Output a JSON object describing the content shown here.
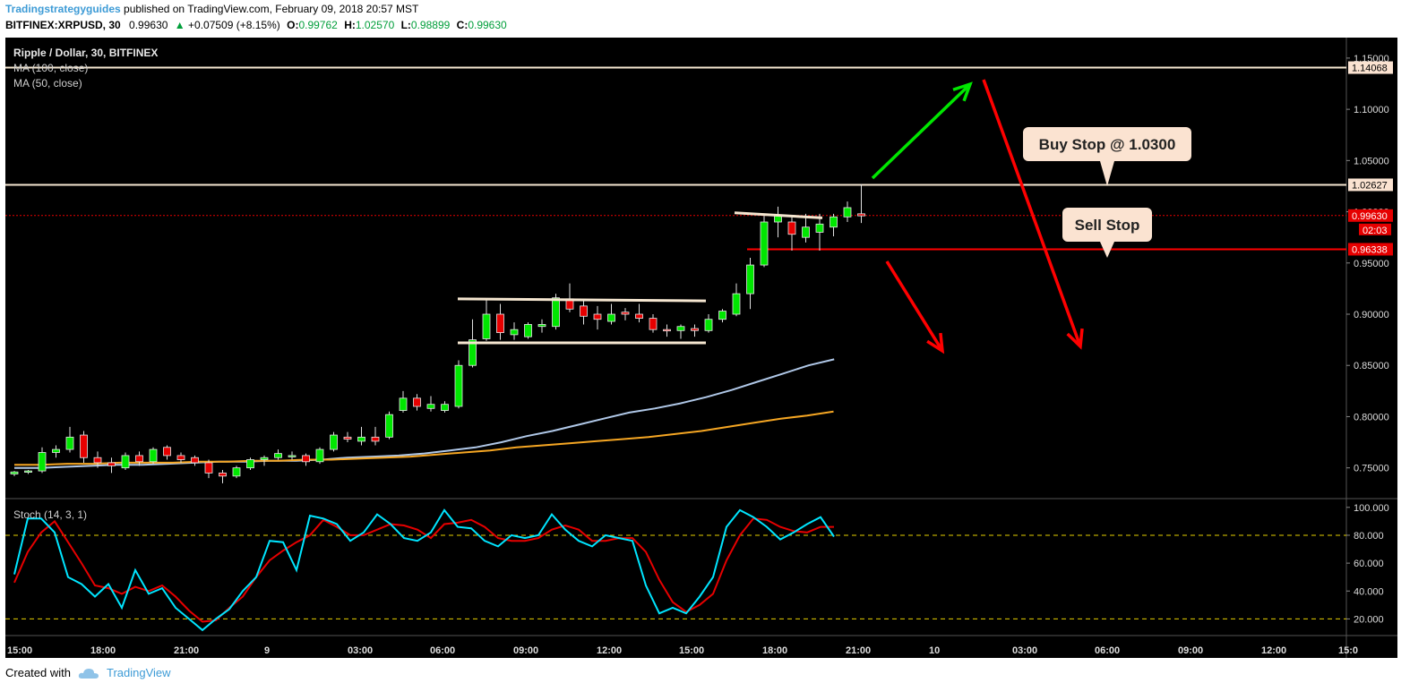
{
  "header": {
    "author": "Tradingstrategyguides",
    "published": " published on TradingView.com, February 09, 2018 20:57 MST",
    "symbol": "BITFINEX:XRPUSD, 30",
    "last": "0.99630",
    "change": "+0.07509 (+8.15%)",
    "o_label": "O:",
    "o": "0.99762",
    "h_label": "H:",
    "h": "1.02570",
    "l_label": "L:",
    "l": "0.98899",
    "c_label": "C:",
    "c": "0.99630"
  },
  "legend": {
    "title": "Ripple / Dollar, 30, BITFINEX",
    "ma100": "MA (100, close)",
    "ma50": "MA (50, close)",
    "stoch": "Stoch (14, 3, 1)"
  },
  "annotations": {
    "buy_stop": "Buy Stop @ 1.0300",
    "sell_stop": "Sell Stop"
  },
  "footer": {
    "created": "Created with",
    "brand": "TradingView"
  },
  "colors": {
    "up": "#00e600",
    "down": "#e60000",
    "ma100": "#b0c8e8",
    "ma50": "#f5a623",
    "stoch_k": "#00e5ff",
    "stoch_d": "#e60000",
    "level_line": "#f5e6d0",
    "sell_line": "#ff0000",
    "arrow_up": "#00e600",
    "arrow_down": "#ff0000"
  },
  "chart_data": {
    "type": "candlestick",
    "price_axis": {
      "ticks": [
        "1.15000",
        "1.10000",
        "1.05000",
        "1.00000",
        "0.95000",
        "0.90000",
        "0.85000",
        "0.80000",
        "0.75000"
      ],
      "ylim": [
        0.72,
        1.17
      ]
    },
    "time_axis": [
      "15:00",
      "18:00",
      "21:00",
      "9",
      "03:00",
      "06:00",
      "09:00",
      "12:00",
      "15:00",
      "18:00",
      "21:00",
      "10",
      "03:00",
      "06:00",
      "09:00",
      "12:00",
      "15:0"
    ],
    "price_labels": {
      "resistance": "1.14068",
      "breakout": "1.02627",
      "last": "0.99630",
      "countdown": "02:03",
      "sell_level": "0.96338"
    },
    "levels": {
      "resistance": 1.1407,
      "breakout": 1.0263,
      "last": 0.9963,
      "sell": 0.9634
    },
    "candles": [
      [
        0.744,
        0.747,
        0.742,
        0.746
      ],
      [
        0.746,
        0.748,
        0.744,
        0.747
      ],
      [
        0.747,
        0.77,
        0.745,
        0.765
      ],
      [
        0.765,
        0.772,
        0.76,
        0.768
      ],
      [
        0.768,
        0.79,
        0.765,
        0.78
      ],
      [
        0.782,
        0.786,
        0.755,
        0.76
      ],
      [
        0.76,
        0.766,
        0.75,
        0.755
      ],
      [
        0.755,
        0.76,
        0.745,
        0.752
      ],
      [
        0.75,
        0.765,
        0.748,
        0.762
      ],
      [
        0.762,
        0.766,
        0.752,
        0.756
      ],
      [
        0.756,
        0.77,
        0.754,
        0.768
      ],
      [
        0.77,
        0.772,
        0.758,
        0.762
      ],
      [
        0.762,
        0.765,
        0.755,
        0.758
      ],
      [
        0.76,
        0.762,
        0.752,
        0.755
      ],
      [
        0.755,
        0.758,
        0.74,
        0.745
      ],
      [
        0.745,
        0.748,
        0.735,
        0.742
      ],
      [
        0.742,
        0.752,
        0.74,
        0.75
      ],
      [
        0.75,
        0.76,
        0.748,
        0.758
      ],
      [
        0.758,
        0.762,
        0.752,
        0.76
      ],
      [
        0.76,
        0.768,
        0.758,
        0.764
      ],
      [
        0.762,
        0.766,
        0.758,
        0.762
      ],
      [
        0.762,
        0.764,
        0.752,
        0.756
      ],
      [
        0.756,
        0.77,
        0.754,
        0.768
      ],
      [
        0.768,
        0.785,
        0.766,
        0.782
      ],
      [
        0.78,
        0.785,
        0.775,
        0.778
      ],
      [
        0.776,
        0.79,
        0.772,
        0.78
      ],
      [
        0.78,
        0.79,
        0.772,
        0.776
      ],
      [
        0.78,
        0.805,
        0.778,
        0.802
      ],
      [
        0.806,
        0.825,
        0.804,
        0.818
      ],
      [
        0.818,
        0.822,
        0.806,
        0.81
      ],
      [
        0.808,
        0.82,
        0.805,
        0.812
      ],
      [
        0.806,
        0.815,
        0.804,
        0.812
      ],
      [
        0.81,
        0.855,
        0.808,
        0.85
      ],
      [
        0.85,
        0.895,
        0.848,
        0.875
      ],
      [
        0.876,
        0.915,
        0.874,
        0.9
      ],
      [
        0.9,
        0.91,
        0.875,
        0.882
      ],
      [
        0.88,
        0.892,
        0.875,
        0.885
      ],
      [
        0.878,
        0.892,
        0.876,
        0.89
      ],
      [
        0.888,
        0.895,
        0.882,
        0.89
      ],
      [
        0.888,
        0.92,
        0.885,
        0.916
      ],
      [
        0.915,
        0.93,
        0.902,
        0.905
      ],
      [
        0.908,
        0.915,
        0.89,
        0.898
      ],
      [
        0.9,
        0.908,
        0.885,
        0.895
      ],
      [
        0.893,
        0.91,
        0.89,
        0.9
      ],
      [
        0.902,
        0.906,
        0.894,
        0.9
      ],
      [
        0.9,
        0.91,
        0.892,
        0.896
      ],
      [
        0.896,
        0.9,
        0.882,
        0.885
      ],
      [
        0.885,
        0.89,
        0.878,
        0.884
      ],
      [
        0.884,
        0.89,
        0.876,
        0.888
      ],
      [
        0.886,
        0.89,
        0.878,
        0.884
      ],
      [
        0.884,
        0.9,
        0.882,
        0.895
      ],
      [
        0.895,
        0.905,
        0.892,
        0.903
      ],
      [
        0.9,
        0.93,
        0.898,
        0.92
      ],
      [
        0.92,
        0.955,
        0.905,
        0.948
      ],
      [
        0.948,
        0.998,
        0.946,
        0.99
      ],
      [
        0.99,
        1.005,
        0.975,
        0.996
      ],
      [
        0.99,
        0.995,
        0.962,
        0.978
      ],
      [
        0.975,
        0.998,
        0.97,
        0.985
      ],
      [
        0.98,
        0.998,
        0.962,
        0.988
      ],
      [
        0.985,
        0.998,
        0.976,
        0.995
      ],
      [
        0.995,
        1.01,
        0.99,
        1.004
      ],
      [
        0.998,
        1.027,
        0.989,
        0.996
      ]
    ],
    "ma100": [
      0.75,
      0.75,
      0.751,
      0.752,
      0.753,
      0.753,
      0.754,
      0.755,
      0.756,
      0.756,
      0.757,
      0.757,
      0.758,
      0.76,
      0.761,
      0.762,
      0.764,
      0.767,
      0.77,
      0.775,
      0.781,
      0.786,
      0.792,
      0.798,
      0.804,
      0.808,
      0.813,
      0.819,
      0.826,
      0.834,
      0.842,
      0.85,
      0.856
    ],
    "ma50": [
      0.753,
      0.753,
      0.754,
      0.754,
      0.755,
      0.755,
      0.755,
      0.756,
      0.756,
      0.757,
      0.757,
      0.758,
      0.758,
      0.759,
      0.76,
      0.761,
      0.763,
      0.765,
      0.767,
      0.77,
      0.772,
      0.774,
      0.776,
      0.778,
      0.78,
      0.783,
      0.786,
      0.79,
      0.794,
      0.798,
      0.801,
      0.805
    ],
    "stoch_axis": {
      "ticks": [
        "100.000",
        "80.000",
        "60.000",
        "40.000",
        "20.000"
      ],
      "ylim": [
        10,
        105
      ],
      "bands": [
        80,
        20
      ]
    },
    "stoch_k": [
      52,
      92,
      92,
      82,
      50,
      45,
      36,
      45,
      28,
      55,
      38,
      42,
      28,
      20,
      12,
      20,
      27,
      40,
      50,
      76,
      75,
      55,
      94,
      92,
      88,
      76,
      82,
      95,
      88,
      78,
      76,
      82,
      98,
      86,
      85,
      76,
      72,
      80,
      78,
      80,
      95,
      84,
      76,
      72,
      80,
      78,
      76,
      44,
      24,
      28,
      24,
      36,
      50,
      86,
      98,
      93,
      86,
      77,
      82,
      88,
      93,
      79
    ],
    "stoch_d": [
      46,
      68,
      82,
      90,
      75,
      60,
      44,
      42,
      38,
      43,
      40,
      44,
      36,
      26,
      18,
      19,
      28,
      36,
      50,
      62,
      69,
      75,
      80,
      91,
      86,
      80,
      80,
      84,
      88,
      87,
      84,
      78,
      88,
      89,
      91,
      86,
      78,
      76,
      76,
      78,
      84,
      87,
      84,
      76,
      76,
      78,
      78,
      68,
      48,
      32,
      25,
      30,
      38,
      62,
      80,
      92,
      91,
      86,
      83,
      82,
      86,
      86
    ]
  }
}
